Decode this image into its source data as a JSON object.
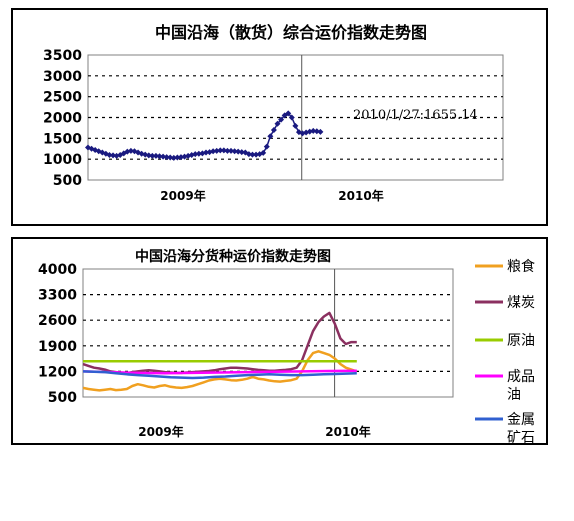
{
  "chart_data": [
    {
      "type": "line",
      "title": "中国沿海（散货）综合运价指数走势图",
      "xlabel": "",
      "ylabel": "",
      "x_tick_labels": [
        "2009年",
        "2010年"
      ],
      "y_ticks": [
        "3500",
        "3000",
        "2500",
        "2000",
        "1500",
        "1000",
        "500"
      ],
      "ylim": [
        500,
        3500
      ],
      "grid": "dotted-horizontal",
      "divider_label": "",
      "annotation": "2010/1/27:1655.14",
      "series": [
        {
          "name": "",
          "color": "#1a1a80",
          "marker": "diamond",
          "x": [
            0,
            1,
            2,
            3,
            4,
            5,
            6,
            7,
            8,
            9,
            10,
            11,
            12,
            13,
            14,
            15,
            16,
            17,
            18,
            19,
            20,
            21,
            22,
            23,
            24,
            25,
            26,
            27,
            28,
            29,
            30,
            31,
            32,
            33,
            34,
            35,
            36,
            37,
            38,
            39,
            40,
            41,
            42,
            43,
            44,
            45,
            46,
            47,
            48,
            49,
            50,
            51,
            52,
            53,
            54,
            55,
            56,
            57,
            58,
            59,
            60,
            61,
            62,
            63,
            64,
            65
          ],
          "values": [
            1280,
            1250,
            1220,
            1190,
            1160,
            1130,
            1100,
            1090,
            1080,
            1100,
            1140,
            1180,
            1200,
            1190,
            1160,
            1130,
            1110,
            1090,
            1080,
            1080,
            1070,
            1060,
            1050,
            1040,
            1030,
            1040,
            1050,
            1060,
            1080,
            1100,
            1120,
            1130,
            1140,
            1160,
            1170,
            1190,
            1200,
            1210,
            1210,
            1200,
            1200,
            1190,
            1180,
            1170,
            1160,
            1120,
            1110,
            1110,
            1120,
            1150,
            1300,
            1550,
            1700,
            1850,
            1950,
            2050,
            2100,
            2000,
            1800,
            1650,
            1620,
            1640,
            1660,
            1680,
            1670,
            1655
          ]
        }
      ]
    },
    {
      "type": "line",
      "title": "中国沿海分货种运价指数走势图",
      "xlabel": "",
      "ylabel": "",
      "x_tick_labels": [
        "2009年",
        "2010年"
      ],
      "y_ticks": [
        "4000",
        "3300",
        "2600",
        "1900",
        "1200",
        "500"
      ],
      "ylim": [
        500,
        4000
      ],
      "grid": "dotted-horizontal",
      "legend_position": "right",
      "series": [
        {
          "name": "粮食",
          "color": "#f0a020",
          "x": [
            0,
            4,
            8,
            12,
            16,
            20,
            24,
            28,
            32,
            36,
            40,
            44,
            48,
            52,
            56,
            60,
            64,
            68,
            72,
            76,
            80,
            84,
            88,
            92,
            96,
            100,
            104,
            108,
            112,
            116,
            120,
            124,
            128,
            132,
            136,
            140,
            144,
            148,
            152,
            156,
            160,
            164,
            168,
            172,
            176,
            180,
            184,
            188,
            192,
            196,
            200
          ],
          "values": [
            750,
            720,
            700,
            680,
            700,
            720,
            690,
            700,
            720,
            800,
            850,
            820,
            780,
            760,
            800,
            820,
            780,
            760,
            750,
            770,
            800,
            850,
            900,
            950,
            980,
            1000,
            980,
            960,
            950,
            970,
            1000,
            1050,
            1000,
            980,
            950,
            930,
            920,
            940,
            960,
            1000,
            1200,
            1500,
            1700,
            1750,
            1700,
            1650,
            1550,
            1400,
            1300,
            1250,
            1200
          ]
        },
        {
          "name": "煤炭",
          "color": "#8b3060",
          "x": [
            0,
            4,
            8,
            12,
            16,
            20,
            24,
            28,
            32,
            36,
            40,
            44,
            48,
            52,
            56,
            60,
            64,
            68,
            72,
            76,
            80,
            84,
            88,
            92,
            96,
            100,
            104,
            108,
            112,
            116,
            120,
            124,
            128,
            132,
            136,
            140,
            144,
            148,
            152,
            156,
            160,
            164,
            168,
            172,
            176,
            180,
            184,
            188,
            192,
            196,
            200
          ],
          "values": [
            1400,
            1350,
            1300,
            1280,
            1250,
            1200,
            1180,
            1160,
            1150,
            1180,
            1200,
            1220,
            1230,
            1220,
            1200,
            1180,
            1170,
            1160,
            1160,
            1170,
            1180,
            1190,
            1200,
            1210,
            1230,
            1260,
            1280,
            1300,
            1300,
            1290,
            1280,
            1260,
            1240,
            1230,
            1220,
            1220,
            1230,
            1240,
            1260,
            1300,
            1500,
            1900,
            2300,
            2550,
            2700,
            2800,
            2500,
            2100,
            1950,
            2000,
            2000
          ]
        },
        {
          "name": "原油",
          "color": "#99cc00",
          "x": [
            0,
            200
          ],
          "values": [
            1480,
            1480
          ]
        },
        {
          "name": "成品油",
          "color": "#ff00ff",
          "x": [
            0,
            20,
            40,
            60,
            80,
            100,
            120,
            140,
            160,
            180,
            200
          ],
          "values": [
            1200,
            1180,
            1160,
            1150,
            1160,
            1170,
            1180,
            1190,
            1200,
            1210,
            1220
          ]
        },
        {
          "name": "金属矿石",
          "color": "#3060d0",
          "x": [
            0,
            8,
            16,
            24,
            32,
            40,
            48,
            56,
            64,
            72,
            80,
            88,
            96,
            104,
            112,
            120,
            128,
            136,
            144,
            152,
            160,
            168,
            176,
            184,
            192,
            200
          ],
          "values": [
            1200,
            1190,
            1180,
            1150,
            1120,
            1100,
            1080,
            1060,
            1040,
            1030,
            1020,
            1030,
            1050,
            1060,
            1080,
            1100,
            1110,
            1120,
            1110,
            1100,
            1100,
            1110,
            1120,
            1130,
            1140,
            1150
          ]
        }
      ]
    }
  ]
}
